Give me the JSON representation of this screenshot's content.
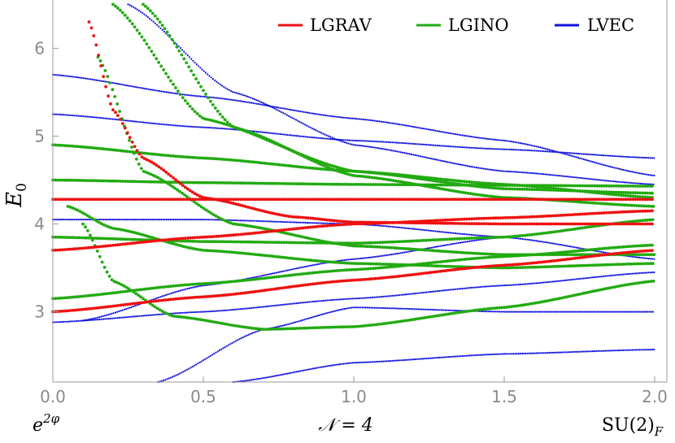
{
  "chart_data": {
    "type": "scatter",
    "title": "",
    "xlim": [
      0,
      2
    ],
    "ylim": [
      2.2,
      6.55
    ],
    "xticks": [
      "0.0",
      "0.5",
      "1.0",
      "1.5",
      "2.0"
    ],
    "yticks": [
      "3",
      "4",
      "5",
      "6"
    ],
    "ylabel_main": "E",
    "ylabel_sub": "0",
    "bottom_left_base": "e",
    "bottom_left_sup": "2φ",
    "bottom_center_label": "𝒩 = 4",
    "bottom_right_label": "SU(2)",
    "bottom_right_sub": "F",
    "grid": false,
    "legend_position": "top-right",
    "legend": [
      {
        "name": "LGRAV",
        "color": "#ee1111"
      },
      {
        "name": "LGINO",
        "color": "#22aa11"
      },
      {
        "name": "LVEC",
        "color": "#1111dd"
      }
    ],
    "series": [
      {
        "name": "LGRAV",
        "color": "#ee1111",
        "curves": [
          {
            "x": [
              0,
              0.5,
              1.0,
              1.5,
              2.0
            ],
            "y": [
              3.0,
              3.17,
              3.36,
              3.53,
              3.7
            ]
          },
          {
            "x": [
              0.12,
              0.2,
              0.3,
              0.5,
              0.8,
              1.0,
              1.5,
              2.0
            ],
            "y": [
              6.3,
              5.3,
              4.75,
              4.3,
              4.08,
              4.02,
              4.0,
              4.0
            ]
          },
          {
            "x": [
              0,
              0.5,
              1.0,
              1.5,
              2.0
            ],
            "y": [
              4.28,
              4.28,
              4.28,
              4.28,
              4.28
            ]
          },
          {
            "x": [
              0,
              0.5,
              1.0,
              1.5,
              2.0
            ],
            "y": [
              3.7,
              3.85,
              4.0,
              4.07,
              4.15
            ]
          }
        ]
      },
      {
        "name": "LGINO",
        "color": "#22aa11",
        "curves": [
          {
            "x": [
              0,
              0.5,
              1.0,
              1.5,
              2.0
            ],
            "y": [
              3.15,
              3.32,
              3.48,
              3.63,
              3.76
            ]
          },
          {
            "x": [
              0.1,
              0.2,
              0.4,
              0.7,
              1.0,
              1.5,
              2.0
            ],
            "y": [
              4.0,
              3.35,
              2.95,
              2.8,
              2.83,
              3.05,
              3.35
            ]
          },
          {
            "x": [
              0,
              0.5,
              1.0,
              1.5,
              2.0
            ],
            "y": [
              4.9,
              4.75,
              4.6,
              4.45,
              4.3
            ]
          },
          {
            "x": [
              0,
              0.5,
              1.0,
              1.5,
              2.0
            ],
            "y": [
              4.5,
              4.47,
              4.45,
              4.44,
              4.43
            ]
          },
          {
            "x": [
              0.05,
              0.2,
              0.5,
              1.0,
              1.5,
              2.0
            ],
            "y": [
              4.2,
              3.95,
              3.7,
              3.55,
              3.5,
              3.55
            ]
          },
          {
            "x": [
              0.2,
              0.5,
              1.0,
              1.5,
              2.0
            ],
            "y": [
              6.5,
              5.2,
              4.6,
              4.4,
              4.35
            ]
          },
          {
            "x": [
              0.15,
              0.3,
              0.6,
              1.0,
              1.5,
              2.0
            ],
            "y": [
              5.9,
              4.6,
              4.0,
              3.75,
              3.65,
              3.65
            ]
          },
          {
            "x": [
              0.3,
              0.6,
              1.0,
              1.5,
              2.0
            ],
            "y": [
              6.5,
              5.1,
              4.55,
              4.3,
              4.2
            ]
          },
          {
            "x": [
              0,
              0.5,
              1.0,
              1.5,
              2.0
            ],
            "y": [
              3.85,
              3.8,
              3.78,
              3.85,
              4.05
            ]
          }
        ]
      },
      {
        "name": "LVEC",
        "color": "#1111dd",
        "curves": [
          {
            "x": [
              0,
              0.5,
              1.0,
              1.5,
              2.0
            ],
            "y": [
              2.88,
              3.0,
              3.15,
              3.3,
              3.45
            ]
          },
          {
            "x": [
              0.3,
              0.6,
              1.0,
              1.5,
              2.0
            ],
            "y": [
              1.8,
              2.2,
              2.42,
              2.52,
              2.57
            ]
          },
          {
            "x": [
              0,
              0.5,
              1.0,
              1.5,
              2.0
            ],
            "y": [
              5.25,
              5.1,
              4.95,
              4.85,
              4.75
            ]
          },
          {
            "x": [
              0,
              0.5,
              1.0,
              1.5,
              2.0
            ],
            "y": [
              5.7,
              5.45,
              5.2,
              4.95,
              4.55
            ]
          },
          {
            "x": [
              0.35,
              0.7,
              1.0,
              1.5,
              2.0
            ],
            "y": [
              2.2,
              2.8,
              3.05,
              3.0,
              3.0
            ]
          },
          {
            "x": [
              0,
              0.5,
              1.0,
              1.5,
              2.0
            ],
            "y": [
              4.05,
              4.05,
              4.0,
              3.85,
              3.6
            ]
          },
          {
            "x": [
              0.25,
              0.6,
              1.0,
              1.5,
              2.0
            ],
            "y": [
              6.5,
              5.5,
              4.9,
              4.6,
              4.45
            ]
          },
          {
            "x": [
              0.1,
              0.5,
              1.0,
              1.5,
              2.0
            ],
            "y": [
              2.9,
              3.3,
              3.6,
              3.85,
              4.05
            ]
          }
        ]
      }
    ]
  }
}
